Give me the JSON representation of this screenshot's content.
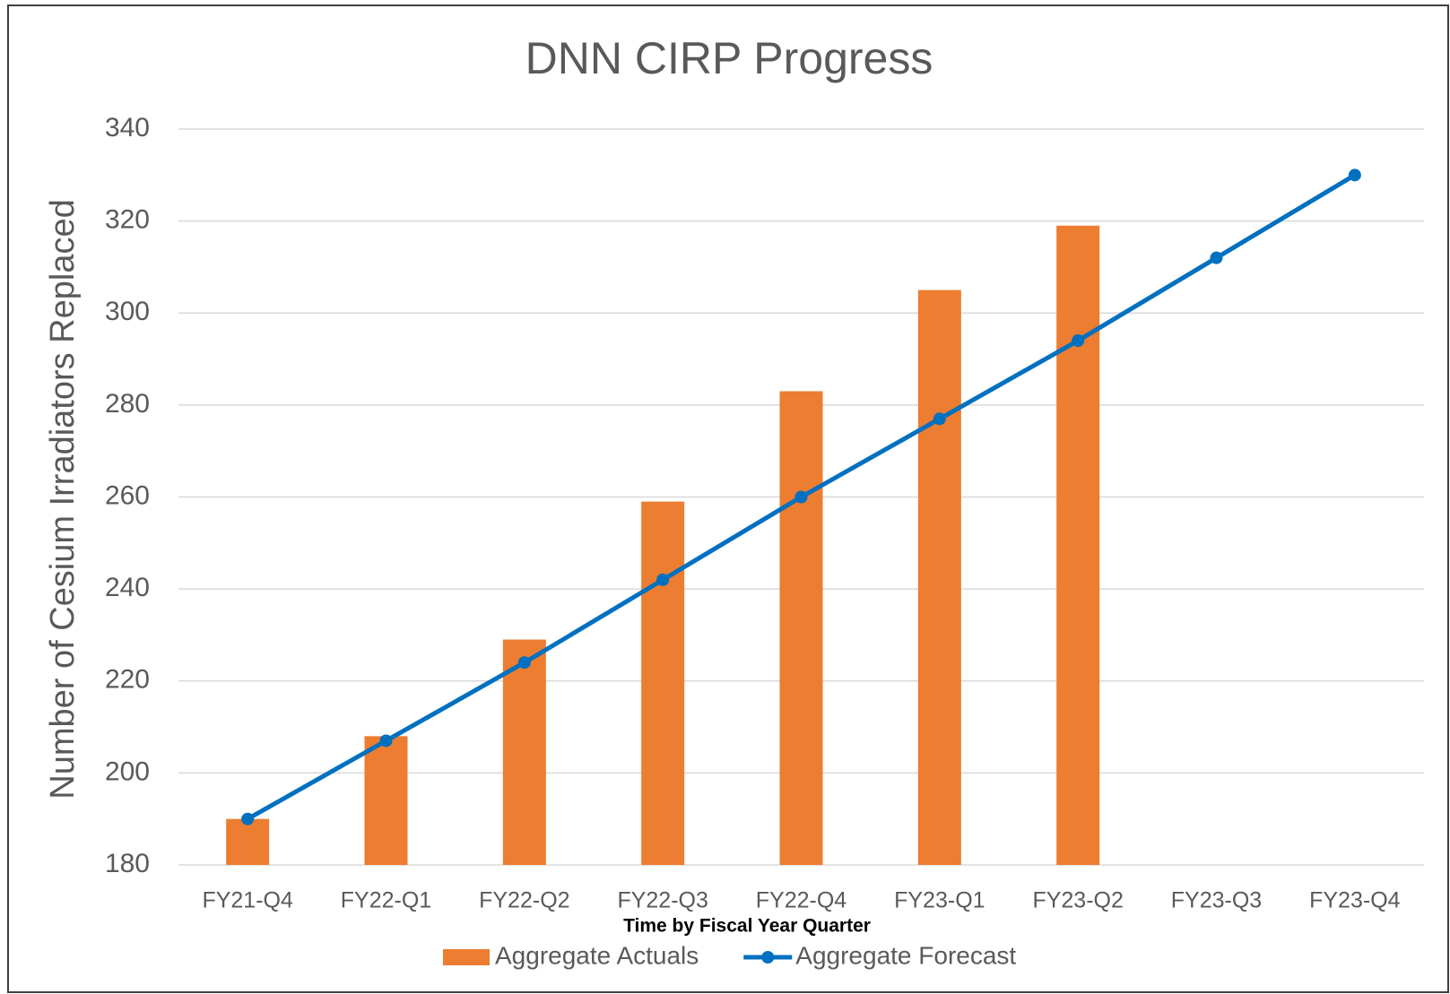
{
  "chart_data": {
    "type": "bar",
    "title": "DNN CIRP Progress",
    "x_label": "Time by Fiscal Year  Quarter",
    "y_label": "Number of Cesium Irradiators Replaced",
    "categories": [
      "FY21-Q4",
      "FY22-Q1",
      "FY22-Q2",
      "FY22-Q3",
      "FY22-Q4",
      "FY23-Q1",
      "FY23-Q2",
      "FY23-Q3",
      "FY23-Q4"
    ],
    "series": [
      {
        "name": "Aggregate Actuals",
        "type": "bar",
        "color": "#ed7d31",
        "values": [
          190,
          208,
          229,
          259,
          283,
          305,
          319,
          null,
          null
        ]
      },
      {
        "name": "Aggregate Forecast",
        "type": "line",
        "color": "#0070c0",
        "values": [
          190,
          207,
          224,
          242,
          260,
          277,
          294,
          312,
          330
        ]
      }
    ],
    "ylim": [
      180,
      340
    ],
    "yticks": [
      180,
      200,
      220,
      240,
      260,
      280,
      300,
      320,
      340
    ],
    "grid": true,
    "legend": "bottom"
  }
}
